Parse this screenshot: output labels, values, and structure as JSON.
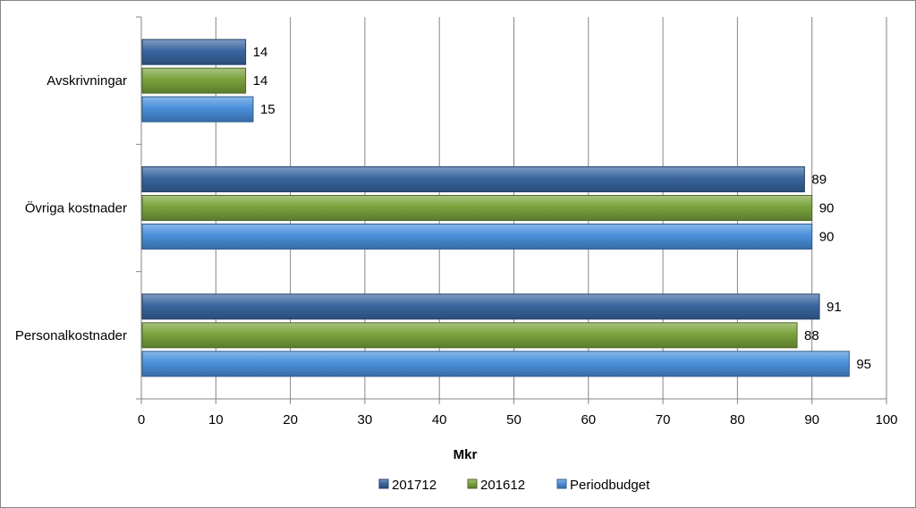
{
  "chart_data": {
    "type": "bar",
    "orientation": "horizontal",
    "categories": [
      "Avskrivningar",
      "Övriga kostnader",
      "Personalkostnader"
    ],
    "series": [
      {
        "name": "201712",
        "values": [
          14,
          89,
          91
        ],
        "color": "#3A66A0"
      },
      {
        "name": "201612",
        "values": [
          14,
          90,
          88
        ],
        "color": "#7AA33C"
      },
      {
        "name": "Periodbudget",
        "values": [
          15,
          90,
          95
        ],
        "color": "#4A90DC"
      }
    ],
    "xlabel": "Mkr",
    "xlim": [
      0,
      100
    ],
    "xticks": [
      0,
      10,
      20,
      30,
      40,
      50,
      60,
      70,
      80,
      90,
      100
    ],
    "grid": "vertical",
    "legend_position": "bottom"
  }
}
